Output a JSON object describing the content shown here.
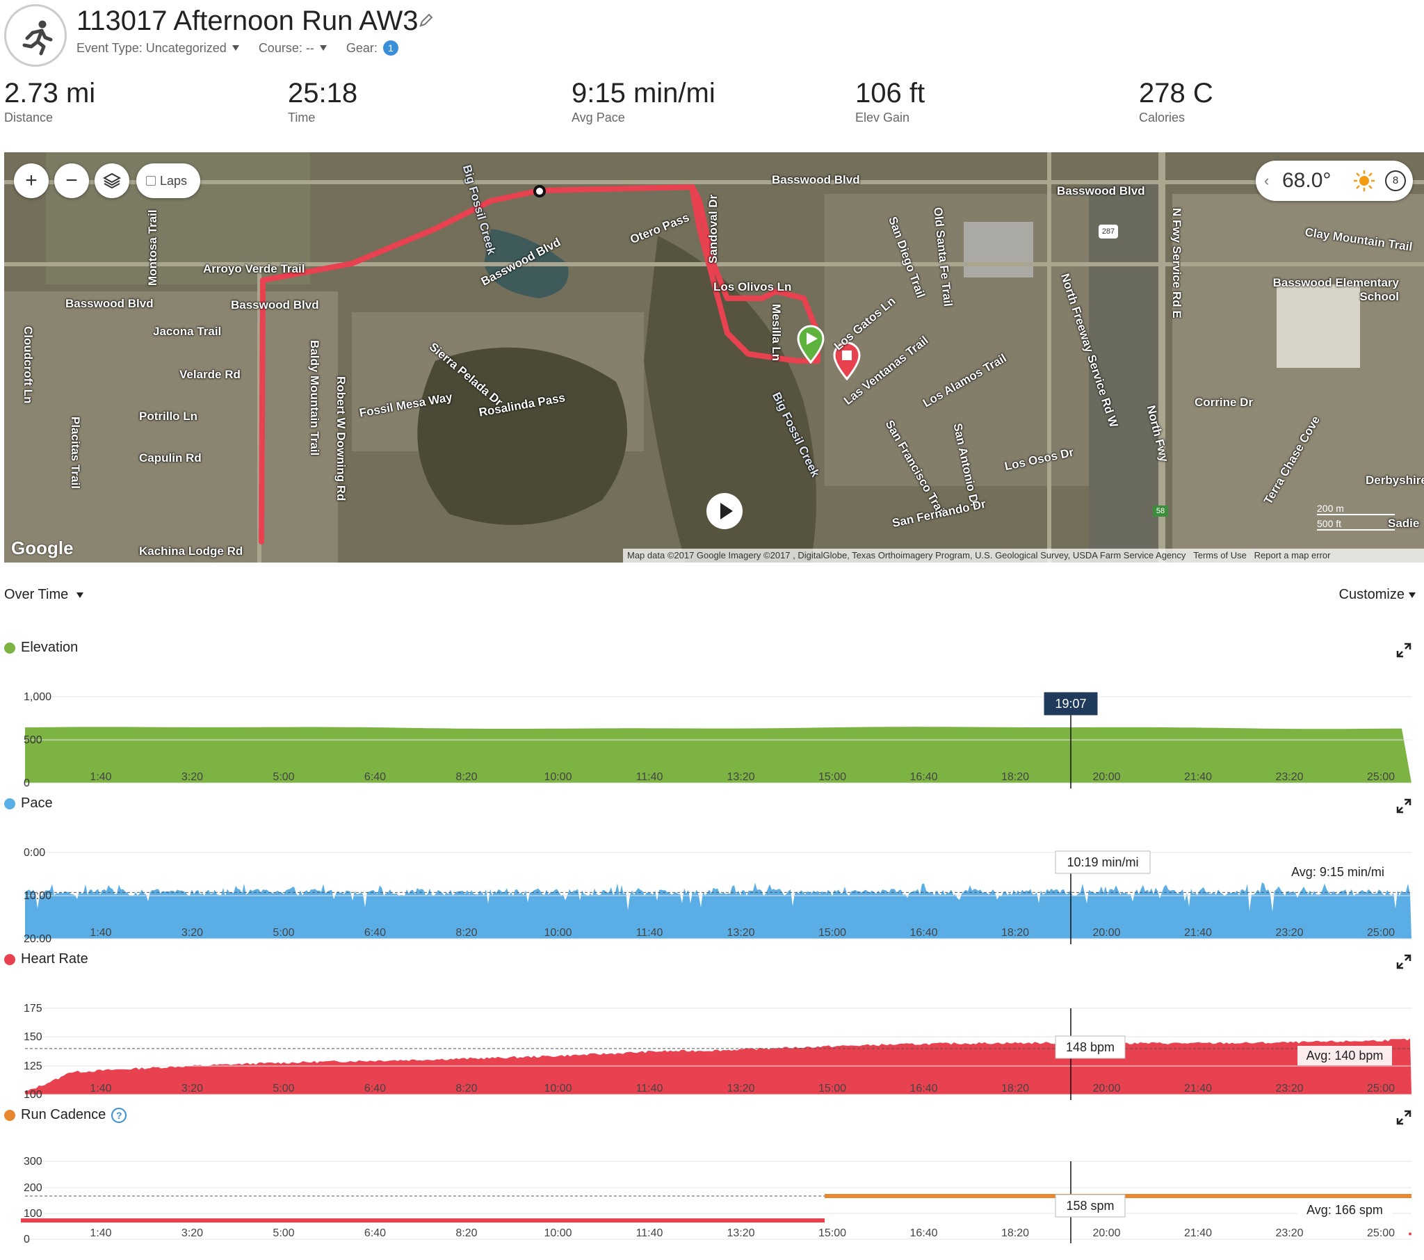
{
  "activity": {
    "title": "113017 Afternoon Run AW3",
    "event_type_label": "Event Type: Uncategorized",
    "course_label": "Course: --",
    "gear_label": "Gear:",
    "gear_count": "1"
  },
  "stats": [
    {
      "value": "2.73 mi",
      "label": "Distance"
    },
    {
      "value": "25:18",
      "label": "Time"
    },
    {
      "value": "9:15 min/mi",
      "label": "Avg Pace"
    },
    {
      "value": "106 ft",
      "label": "Elev Gain"
    },
    {
      "value": "278 C",
      "label": "Calories"
    }
  ],
  "map": {
    "zoom_in_label": "+",
    "zoom_out_label": "−",
    "laps_label": "Laps",
    "weather_temp": "68.0°",
    "wind_speed": "8",
    "google_logo": "Google",
    "attribution": "Map data ©2017 Google Imagery ©2017 , DigitalGlobe, Texas Orthoimagery Program, U.S. Geological Survey, USDA Farm Service Agency",
    "terms": "Terms of Use",
    "report": "Report a map error",
    "scale_200": "200 m",
    "scale_500": "500 ft",
    "streets": [
      "Basswood Blvd",
      "Basswood Blvd",
      "Basswood Blvd",
      "Basswood Blvd",
      "Basswood Blvd",
      "Arroyo Verde Trail",
      "Jacona Trail",
      "Velarde Rd",
      "Potrillo Ln",
      "Capulin Rd",
      "Kachina Lodge Rd",
      "Montosa Trail",
      "Cloudcroft Ln",
      "Placitas Trail",
      "Baldy Mountain Trail",
      "Robert W Downing Rd",
      "Sierra Pelada Dr",
      "Fossil Mesa Way",
      "Rosalinda Pass",
      "Otero Pass",
      "Sandoval Dr",
      "Los Olivos Ln",
      "Mesilla Ln",
      "San Diego Trail",
      "Los Gatos Ln",
      "Las Ventanas Trail",
      "Los Alamos Trail",
      "San Francisco Trail",
      "San Antonio Dr",
      "San Fernando Dr",
      "Los Osos Dr",
      "Old Santa Fe Trail",
      "North Freeway Service Rd W",
      "North Fwy",
      "N Fwy Service Rd E",
      "Clay Mountain Trail",
      "Basswood Elementary School",
      "Corrine Dr",
      "Terra Chase Cove",
      "Derbyshire",
      "Big Fossil Creek",
      "Big Fossil Creek",
      "Sadie"
    ],
    "highway_shield": "287",
    "highway_shield_2": "58"
  },
  "controls": {
    "over_time": "Over Time",
    "customize": "Customize"
  },
  "charts": {
    "elevation": {
      "title": "Elevation",
      "color": "#7cb342",
      "yticks": [
        "1,000",
        "500",
        "0"
      ],
      "tooltip": "19:07",
      "ymax": 1000,
      "level": 640
    },
    "pace": {
      "title": "Pace",
      "color": "#5aaee5",
      "yticks": [
        "0:00",
        "10:00",
        "20:00"
      ],
      "tooltip": "10:19 min/mi",
      "avg": "Avg: 9:15 min/mi",
      "avg_value": 9.25
    },
    "heart_rate": {
      "title": "Heart Rate",
      "color": "#e8414f",
      "yticks": [
        "175",
        "150",
        "125",
        "100"
      ],
      "tooltip": "148 bpm",
      "avg": "Avg: 140 bpm",
      "avg_value": 140
    },
    "cadence": {
      "title": "Run Cadence",
      "color": "#e8862e",
      "red": "#e8414f",
      "yticks": [
        "300",
        "200",
        "100",
        "0"
      ],
      "tooltip": "158 spm",
      "avg": "Avg: 166 spm",
      "avg_value": 166,
      "help": "?"
    },
    "xticks": [
      "1:40",
      "3:20",
      "5:00",
      "6:40",
      "8:20",
      "10:00",
      "11:40",
      "13:20",
      "15:00",
      "16:40",
      "18:20",
      "20:00",
      "21:40",
      "23:20",
      "25:00"
    ]
  }
}
